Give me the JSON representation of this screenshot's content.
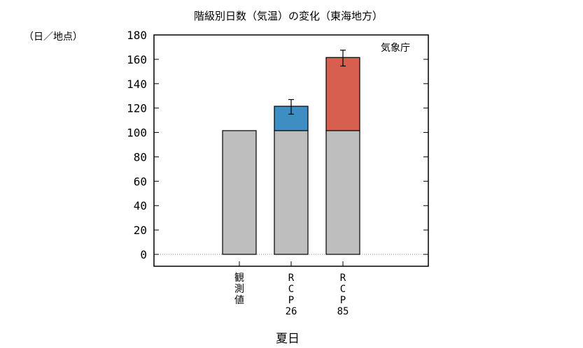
{
  "chart_data": {
    "type": "bar",
    "title": "階級別日数（気温）の変化（東海地方）",
    "ylabel": "（日／地点）",
    "xlabel": "夏日",
    "source_label": "気象庁",
    "ylim": [
      0,
      180
    ],
    "yticks": [
      0,
      20,
      40,
      60,
      80,
      100,
      120,
      140,
      160,
      180
    ],
    "grid": false,
    "baseline_dotted": true,
    "categories": [
      [
        "観",
        "測",
        "値"
      ],
      [
        "R",
        "C",
        "P",
        "26"
      ],
      [
        "R",
        "C",
        "P",
        "85"
      ]
    ],
    "series": [
      {
        "values": [
          101.5,
          101.5,
          101.5
        ],
        "color": "#bebebe"
      },
      {
        "values": [
          0,
          20,
          60
        ],
        "colors": [
          "#bebebe",
          "#3e8ec4",
          "#d65f4f"
        ]
      }
    ],
    "error_bars": [
      null,
      {
        "top": 127,
        "bottom": 115
      },
      {
        "top": 167.5,
        "bottom": 154.5
      }
    ],
    "colors": {
      "gray": "#bebebe",
      "rcp26": "#3e8ec4",
      "rcp85": "#d65f4f"
    }
  }
}
